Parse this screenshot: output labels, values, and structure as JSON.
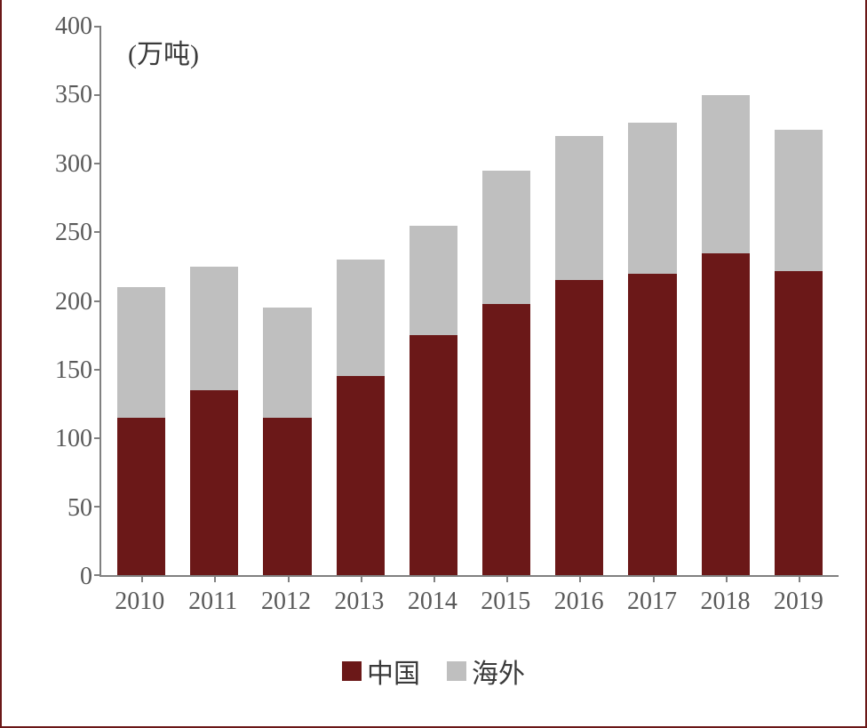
{
  "chart": {
    "type": "stacked-bar",
    "unit_label": "(万吨)",
    "border_color": "#6b1818",
    "axis_color": "#808080",
    "label_color": "#595959",
    "label_fontsize": 28,
    "unit_fontsize": 30,
    "background_color": "#ffffff",
    "ylim": [
      0,
      400
    ],
    "ytick_step": 50,
    "yticks": [
      0,
      50,
      100,
      150,
      200,
      250,
      300,
      350,
      400
    ],
    "categories": [
      "2010",
      "2011",
      "2012",
      "2013",
      "2014",
      "2015",
      "2016",
      "2017",
      "2018",
      "2019"
    ],
    "series": [
      {
        "name": "中国",
        "color": "#6b1818",
        "values": [
          115,
          135,
          115,
          145,
          175,
          198,
          215,
          220,
          235,
          222
        ]
      },
      {
        "name": "海外",
        "color": "#bfbfbf",
        "values": [
          95,
          90,
          80,
          85,
          80,
          97,
          105,
          110,
          115,
          103
        ]
      }
    ],
    "bar_width_ratio": 0.66
  }
}
